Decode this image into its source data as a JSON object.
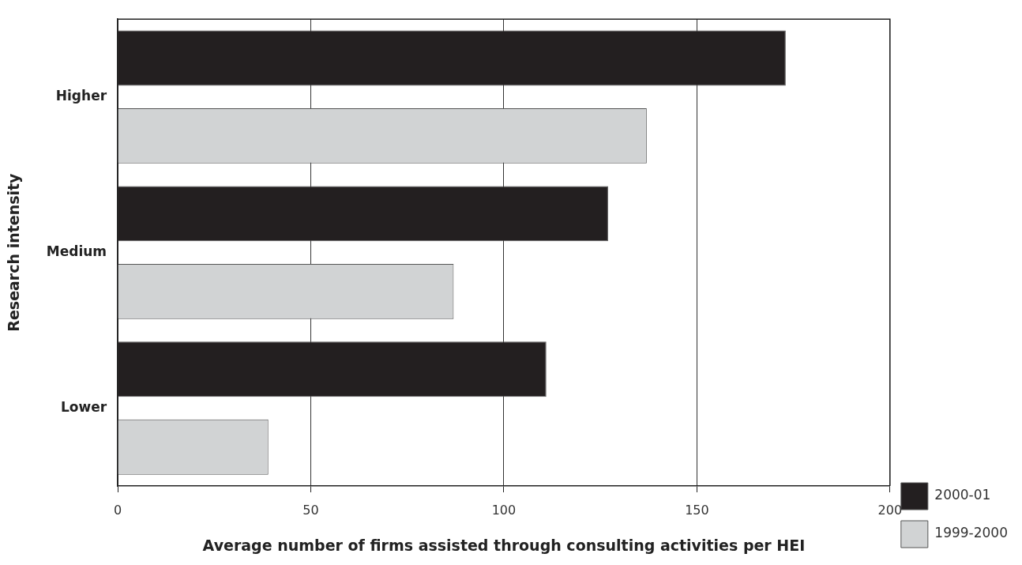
{
  "chart_data": {
    "type": "bar",
    "orientation": "horizontal",
    "xlabel": "Average number of firms assisted through consulting activities per HEI",
    "ylabel": "Research intensity",
    "categories": [
      "Higher",
      "Medium",
      "Lower"
    ],
    "series": [
      {
        "name": "2000-01",
        "color": "#231f20",
        "values": [
          173,
          127,
          111
        ]
      },
      {
        "name": "1999-2000",
        "color": "#d1d3d4",
        "values": [
          137,
          87,
          39
        ]
      }
    ],
    "xlim": [
      0,
      200
    ],
    "xticks": [
      0,
      50,
      100,
      150,
      200
    ],
    "grid": "x",
    "legend": "right"
  }
}
